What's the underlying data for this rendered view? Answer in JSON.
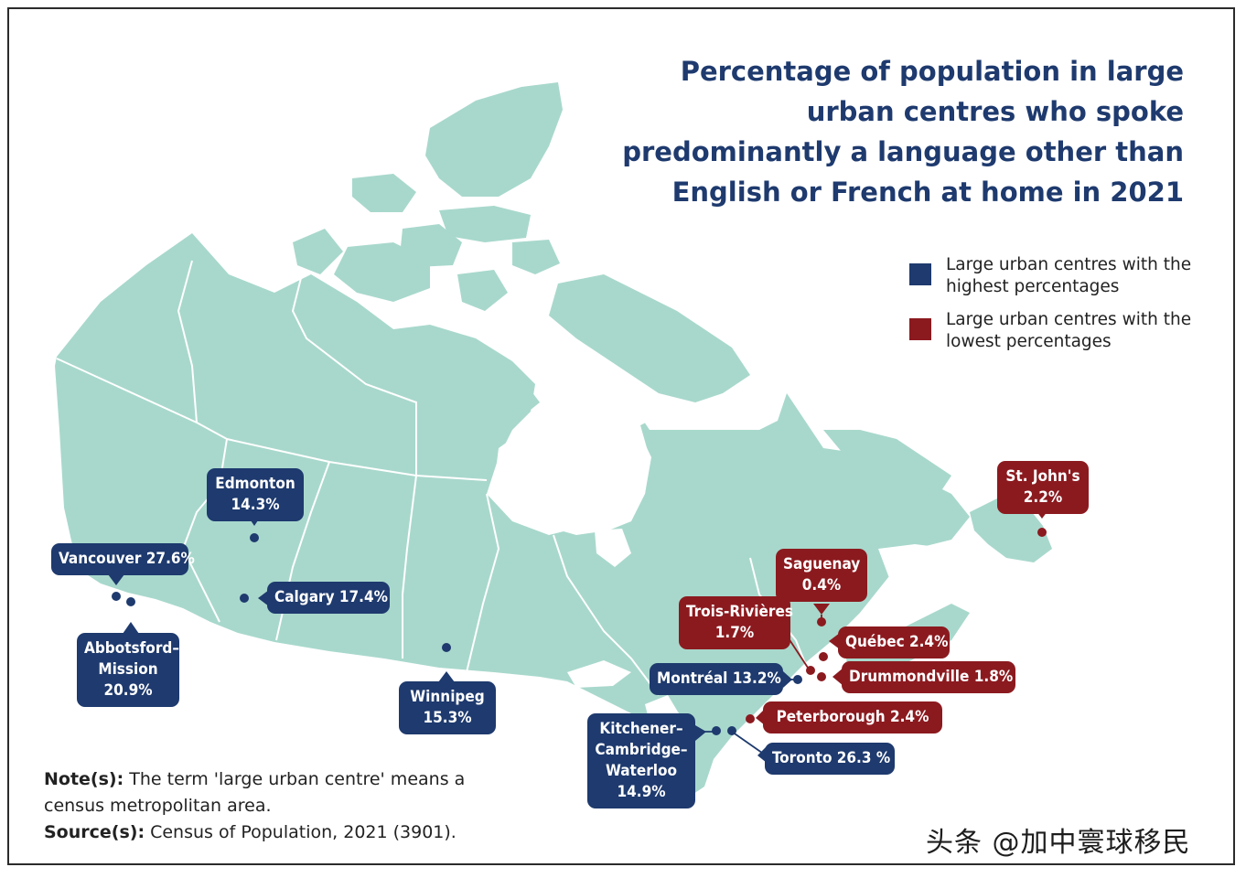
{
  "title": "Percentage of population in large urban centres who spoke predominantly a language other than English or French at home in 2021",
  "legend": [
    {
      "key": "highest",
      "label": "Large urban centres with the highest percentages",
      "color": "#1e3a6e"
    },
    {
      "key": "lowest",
      "label": "Large urban centres with the lowest percentages",
      "color": "#8b1a1f"
    }
  ],
  "note": {
    "note_label": "Note(s):",
    "note_text": " The term 'large urban centre' means a census metropolitan area.",
    "source_label": "Source(s):",
    "source_text": " Census of Population, 2021 (3901)."
  },
  "watermark": "头条 @加中寰球移民",
  "colors": {
    "land": "#a8d8cc",
    "border": "#ffffff",
    "water": "#ffffff"
  },
  "cities": [
    {
      "name": "Vancouver",
      "value": "27.6%",
      "group": "highest",
      "label": "Vancouver 27.6%"
    },
    {
      "name": "Abbotsford-Mission",
      "value": "20.9%",
      "group": "highest",
      "label": "Abbotsford–\nMission\n20.9%"
    },
    {
      "name": "Edmonton",
      "value": "14.3%",
      "group": "highest",
      "label": "Edmonton\n14.3%"
    },
    {
      "name": "Calgary",
      "value": "17.4%",
      "group": "highest",
      "label": "Calgary 17.4%"
    },
    {
      "name": "Winnipeg",
      "value": "15.3%",
      "group": "highest",
      "label": "Winnipeg\n15.3%"
    },
    {
      "name": "Kitchener-Cambridge-Waterloo",
      "value": "14.9%",
      "group": "highest",
      "label": "Kitchener–\nCambridge–\nWaterloo\n14.9%"
    },
    {
      "name": "Toronto",
      "value": "26.3 %",
      "group": "highest",
      "label": "Toronto 26.3 %"
    },
    {
      "name": "Montréal",
      "value": "13.2%",
      "group": "highest",
      "label": "Montréal 13.2%"
    },
    {
      "name": "Peterborough",
      "value": "2.4%",
      "group": "lowest",
      "label": "Peterborough 2.4%"
    },
    {
      "name": "Drummondville",
      "value": "1.8%",
      "group": "lowest",
      "label": "Drummondville 1.8%"
    },
    {
      "name": "Québec",
      "value": "2.4%",
      "group": "lowest",
      "label": "Québec 2.4%"
    },
    {
      "name": "Trois-Rivières",
      "value": "1.7%",
      "group": "lowest",
      "label": "Trois-Rivières\n1.7%"
    },
    {
      "name": "Saguenay",
      "value": "0.4%",
      "group": "lowest",
      "label": "Saguenay\n0.4%"
    },
    {
      "name": "St. John's",
      "value": "2.2%",
      "group": "lowest",
      "label": "St. John's\n2.2%"
    }
  ]
}
